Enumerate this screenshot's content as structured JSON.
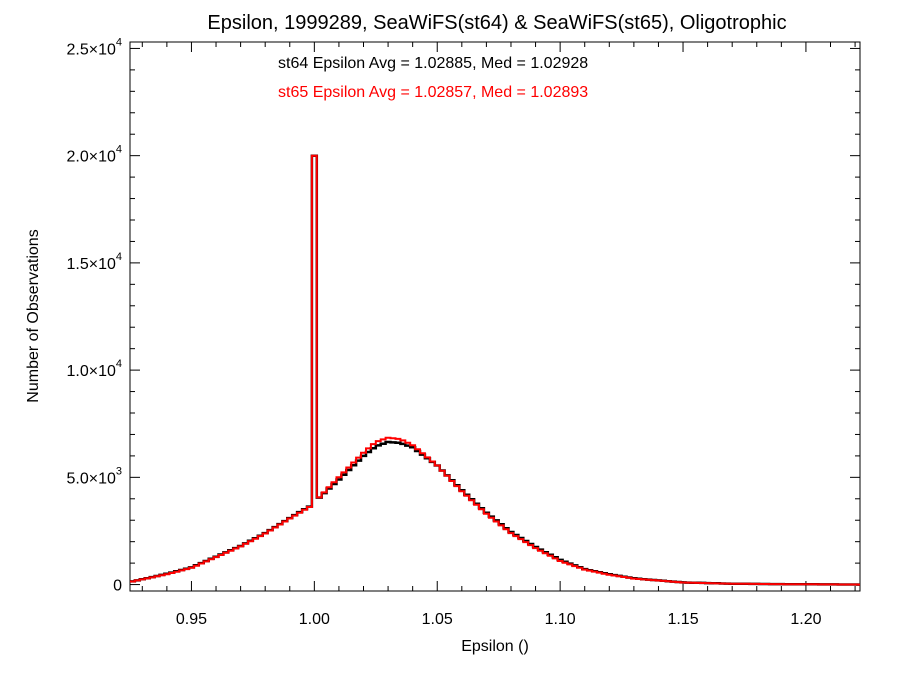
{
  "chart_data": {
    "type": "step-histogram",
    "title": "Epsilon, 1999289, SeaWiFS(st64) & SeaWiFS(st65), Oligotrophic",
    "xlabel": "Epsilon ()",
    "ylabel": "Number of Observations",
    "xlim": [
      0.925,
      1.222
    ],
    "ylim": [
      -300,
      25300
    ],
    "x_ticks": [
      0.95,
      1.0,
      1.05,
      1.1,
      1.15,
      1.2
    ],
    "x_tick_labels": [
      "0.95",
      "1.00",
      "1.05",
      "1.10",
      "1.15",
      "1.20"
    ],
    "y_ticks": [
      {
        "value": 0,
        "mantissa": "0",
        "exp": ""
      },
      {
        "value": 5000,
        "mantissa": "5.0×10",
        "exp": "3"
      },
      {
        "value": 10000,
        "mantissa": "1.0×10",
        "exp": "4"
      },
      {
        "value": 15000,
        "mantissa": "1.5×10",
        "exp": "4"
      },
      {
        "value": 20000,
        "mantissa": "2.0×10",
        "exp": "4"
      },
      {
        "value": 25000,
        "mantissa": "2.5×10",
        "exp": "4"
      }
    ],
    "annotations": [
      {
        "text": "st64 Epsilon Avg = 1.02885, Med = 1.02928",
        "color": "#000000"
      },
      {
        "text": "st65 Epsilon Avg = 1.02857, Med = 1.02893",
        "color": "#ff0000"
      }
    ],
    "series": [
      {
        "color": "#000000",
        "x": [
          0.925,
          0.94,
          0.95,
          0.96,
          0.97,
          0.98,
          0.99,
          0.995,
          0.999,
          1.0,
          1.001,
          1.01,
          1.02,
          1.025,
          1.03,
          1.035,
          1.04,
          1.05,
          1.06,
          1.07,
          1.08,
          1.09,
          1.1,
          1.11,
          1.12,
          1.13,
          1.15,
          1.17,
          1.19,
          1.222
        ],
        "y": [
          120,
          500,
          800,
          1300,
          1800,
          2400,
          3100,
          3450,
          3700,
          20000,
          3950,
          4900,
          6000,
          6450,
          6650,
          6600,
          6400,
          5550,
          4400,
          3350,
          2450,
          1750,
          1150,
          720,
          480,
          290,
          100,
          40,
          20,
          0
        ]
      },
      {
        "color": "#ff0000",
        "x": [
          0.925,
          0.94,
          0.95,
          0.96,
          0.97,
          0.98,
          0.99,
          0.995,
          0.999,
          1.0,
          1.001,
          1.01,
          1.02,
          1.025,
          1.03,
          1.035,
          1.04,
          1.05,
          1.06,
          1.07,
          1.08,
          1.09,
          1.1,
          1.11,
          1.12,
          1.13,
          1.15,
          1.17,
          1.19,
          1.222
        ],
        "y": [
          120,
          480,
          780,
          1280,
          1780,
          2380,
          3080,
          3420,
          3680,
          20000,
          3950,
          5000,
          6150,
          6650,
          6850,
          6780,
          6500,
          5550,
          4350,
          3300,
          2400,
          1700,
          1100,
          700,
          460,
          280,
          95,
          40,
          20,
          0
        ]
      }
    ]
  }
}
